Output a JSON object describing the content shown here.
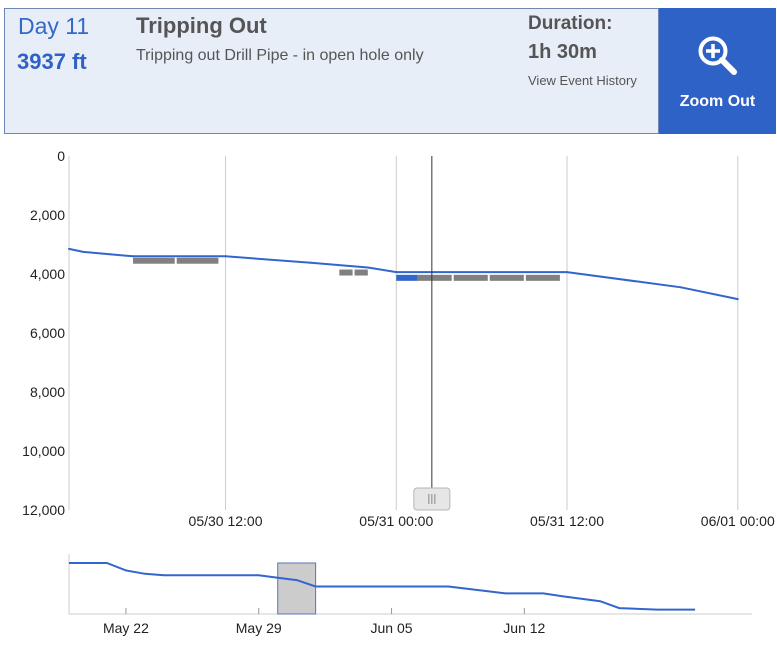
{
  "header": {
    "day_label": "Day 11",
    "depth_label": "3937 ft",
    "event_title": "Tripping Out",
    "event_description": "Tripping out Drill Pipe - in open hole only",
    "duration_label": "Duration:",
    "duration_value": "1h 30m",
    "history_link": "View Event History",
    "zoom_button_label": "Zoom Out",
    "zoom_icon": "zoom-out-magnifier-icon"
  },
  "colors": {
    "accent": "#2f62c7",
    "header_bg": "#e8eef8",
    "line": "#3366cc",
    "event_bar": "#808080",
    "selected_event": "#3366cc"
  },
  "chart_data": [
    {
      "type": "line",
      "role": "main-depth-chart",
      "x_unit": "datetime",
      "y_reversed": true,
      "ylim": [
        0,
        12000
      ],
      "xlim": [
        "05/30 01:00",
        "06/01 01:00"
      ],
      "y_ticks": [
        0,
        2000,
        4000,
        6000,
        8000,
        10000,
        12000
      ],
      "y_tick_labels": [
        "0",
        "2,000",
        "4,000",
        "6,000",
        "8,000",
        "10,000",
        "12,000"
      ],
      "x_ticks": [
        "05/30 12:00",
        "05/31 00:00",
        "05/31 12:00",
        "06/01 00:00"
      ],
      "x_tick_labels": [
        "05/30 12:00",
        "05/31 00:00",
        "05/31 12:00",
        "06/01 00:00"
      ],
      "grid": true,
      "series": [
        {
          "x": [
            "05/30 01:00",
            "05/30 02:00",
            "05/30 05:30",
            "05/30 12:00",
            "05/30 18:00",
            "05/30 22:00",
            "05/31 00:00",
            "05/31 12:00",
            "05/31 20:00",
            "06/01 00:00"
          ],
          "y": [
            3150,
            3250,
            3400,
            3400,
            3620,
            3780,
            3937,
            3937,
            4450,
            4850
          ]
        }
      ],
      "events": [
        {
          "start": "05/30 05:30",
          "end": "05/30 11:30",
          "depth": 3550,
          "segments": 2,
          "selected": false
        },
        {
          "start": "05/30 20:00",
          "end": "05/30 22:00",
          "depth": 3950,
          "segments": 2,
          "selected": false
        },
        {
          "start": "05/31 00:00",
          "end": "05/31 01:30",
          "depth": 4130,
          "segments": 1,
          "selected": true
        },
        {
          "start": "05/31 01:30",
          "end": "05/31 11:30",
          "depth": 4130,
          "segments": 4,
          "selected": false
        }
      ],
      "cursor": "05/31 02:30"
    },
    {
      "type": "line",
      "role": "range-navigator",
      "x_unit": "date",
      "xlim": [
        "May 19",
        "Jun 24"
      ],
      "x_ticks": [
        "May 22",
        "May 29",
        "Jun 05",
        "Jun 12"
      ],
      "x_tick_labels": [
        "May 22",
        "May 29",
        "Jun 05",
        "Jun 12"
      ],
      "selected_range": [
        "May 30",
        "Jun 01"
      ],
      "series": [
        {
          "x": [
            "May 19",
            "May 21",
            "May 22",
            "May 23",
            "May 24",
            "May 29",
            "May 30",
            "May 31",
            "Jun 01",
            "Jun 05",
            "Jun 08",
            "Jun 11",
            "Jun 13",
            "Jun 14",
            "Jun 16",
            "Jun 17",
            "Jun 19",
            "Jun 21"
          ],
          "y": [
            0,
            0,
            0.15,
            0.22,
            0.25,
            0.25,
            0.3,
            0.35,
            0.48,
            0.48,
            0.48,
            0.62,
            0.62,
            0.68,
            0.78,
            0.92,
            0.95,
            0.95
          ]
        }
      ]
    }
  ]
}
